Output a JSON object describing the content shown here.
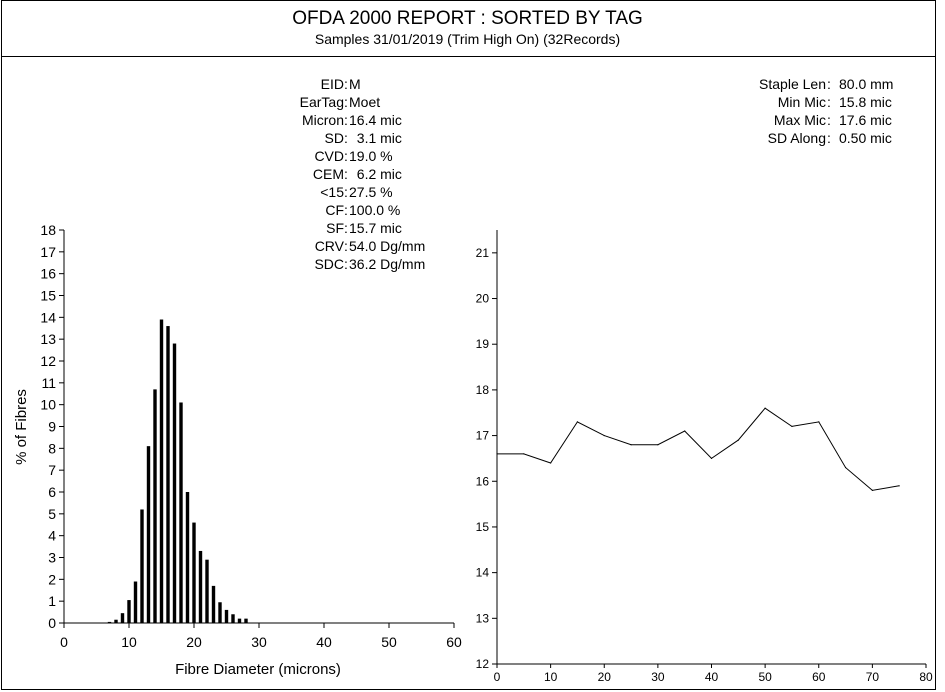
{
  "report": {
    "title": "OFDA 2000 REPORT : SORTED BY TAG",
    "subtitle": "Samples 31/01/2019 (Trim High On) (32Records)"
  },
  "stats_left": [
    {
      "key": "EID",
      "value": "M"
    },
    {
      "key": "EarTag",
      "value": "Moet"
    },
    {
      "key": "Micron",
      "value": "16.4 mic"
    },
    {
      "key": "SD",
      "value": "  3.1 mic"
    },
    {
      "key": "CVD",
      "value": "19.0 %"
    },
    {
      "key": "CEM",
      "value": "  6.2 mic"
    },
    {
      "key": "<15",
      "value": "27.5 %"
    },
    {
      "key": "CF",
      "value": "100.0 %"
    },
    {
      "key": "SF",
      "value": "15.7 mic"
    },
    {
      "key": "CRV",
      "value": "54.0 Dg/mm"
    },
    {
      "key": "SDC",
      "value": "36.2 Dg/mm"
    }
  ],
  "stats_right": [
    {
      "key": "Staple Len",
      "value": "80.0 mm"
    },
    {
      "key": "Min Mic",
      "value": "15.8 mic"
    },
    {
      "key": "Max Mic",
      "value": "17.6 mic"
    },
    {
      "key": "SD Along",
      "value": "0.50 mic"
    }
  ],
  "chart_data": [
    {
      "type": "bar",
      "title": "",
      "xlabel": "Fibre Diameter (microns)",
      "ylabel": "% of Fibres",
      "xlim": [
        0,
        60
      ],
      "ylim": [
        0,
        18
      ],
      "xticks": [
        0,
        10,
        20,
        30,
        40,
        50,
        60
      ],
      "yticks": [
        0,
        1,
        2,
        3,
        4,
        5,
        6,
        7,
        8,
        9,
        10,
        11,
        12,
        13,
        14,
        15,
        16,
        17,
        18
      ],
      "x": [
        7,
        8,
        9,
        10,
        11,
        12,
        13,
        14,
        15,
        16,
        17,
        18,
        19,
        20,
        21,
        22,
        23,
        24,
        25,
        26,
        27,
        28
      ],
      "values": [
        0.05,
        0.15,
        0.45,
        1.05,
        1.9,
        5.2,
        8.1,
        10.7,
        13.9,
        13.6,
        12.8,
        10.1,
        6.0,
        4.6,
        3.3,
        2.9,
        1.7,
        0.95,
        0.6,
        0.4,
        0.2,
        0.2
      ],
      "grid": false
    },
    {
      "type": "line",
      "title": "",
      "xlabel": "",
      "ylabel": "",
      "xlim": [
        0,
        80
      ],
      "ylim": [
        12,
        21.5
      ],
      "xticks": [
        0,
        10,
        20,
        30,
        40,
        50,
        60,
        70,
        80
      ],
      "yticks": [
        12,
        13,
        14,
        15,
        16,
        17,
        18,
        19,
        20,
        21
      ],
      "x": [
        0,
        5,
        10,
        15,
        20,
        25,
        30,
        35,
        40,
        45,
        50,
        55,
        60,
        65,
        70,
        75
      ],
      "values": [
        16.6,
        16.6,
        16.4,
        17.3,
        17.0,
        16.8,
        16.8,
        17.1,
        16.5,
        16.9,
        17.6,
        17.2,
        17.3,
        16.3,
        15.8,
        15.9
      ],
      "grid": false
    }
  ]
}
